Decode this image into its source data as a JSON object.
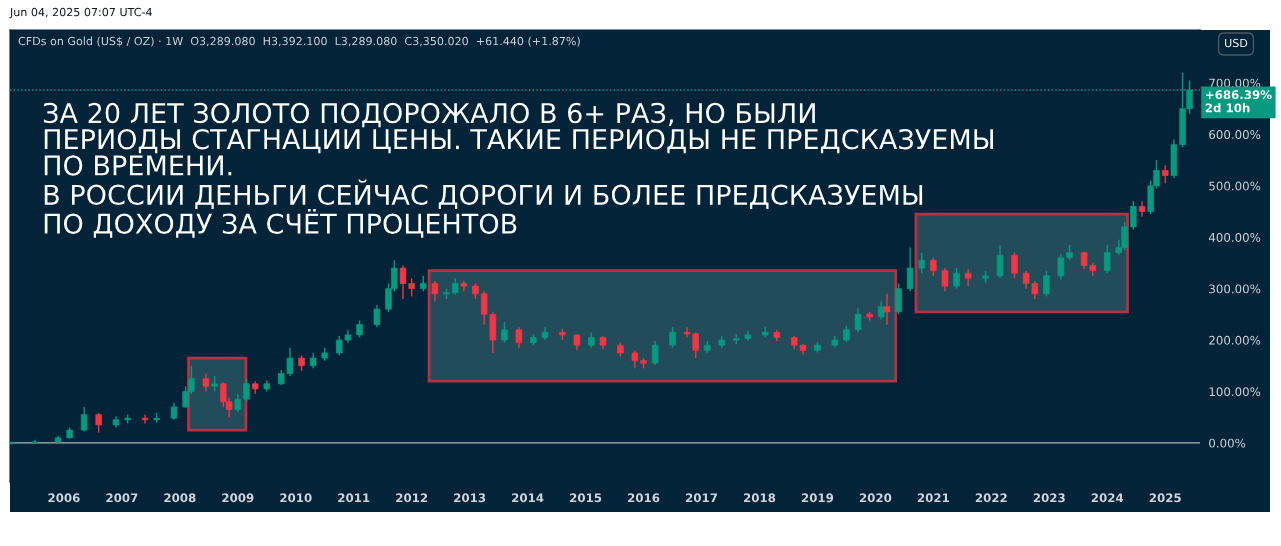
{
  "chart_data": {
    "type": "candlestick",
    "title": "ЗА 20 ЛЕТ ЗОЛОТО ПОДОРОЖАЛО В 6+ РАЗ, НО БЫЛИ\nПЕРИОДЫ СТАГНАЦИИ ЦЕНЫ. ТАКИЕ ПЕРИОДЫ НЕ ПРЕДСКАЗУЕМЫ\nПО ВРЕМЕНИ.\nВ РОССИИ ДЕНЬГИ СЕЙЧАС ДОРОГИ И БОЛЕЕ ПРЕДСКАЗУЕМЫ\nПО ДОХОДУ ЗА СЧЁТ ПРОЦЕНТОВ",
    "subtitle": "CFDs on Gold (US$ / OZ) · 1W  O3,289.080  H3,392.100  L3,289.080  C3,350.020  +61.440 (+1.87%)",
    "annotations": [
      "Jun 04, 2025 07:07 UTC-4",
      "USD"
    ],
    "x": [
      2005.1,
      2005.5,
      2005.9,
      2006.1,
      2006.35,
      2006.6,
      2006.9,
      2007.1,
      2007.4,
      2007.6,
      2007.9,
      2008.1,
      2008.2,
      2008.45,
      2008.6,
      2008.75,
      2008.85,
      2009.0,
      2009.15,
      2009.3,
      2009.5,
      2009.75,
      2009.9,
      2010.1,
      2010.3,
      2010.5,
      2010.75,
      2010.9,
      2011.1,
      2011.4,
      2011.6,
      2011.7,
      2011.85,
      2012.0,
      2012.2,
      2012.4,
      2012.6,
      2012.75,
      2012.9,
      2013.1,
      2013.25,
      2013.4,
      2013.6,
      2013.85,
      2014.1,
      2014.3,
      2014.6,
      2014.85,
      2015.1,
      2015.3,
      2015.6,
      2015.85,
      2016.0,
      2016.2,
      2016.5,
      2016.75,
      2016.9,
      2017.1,
      2017.35,
      2017.6,
      2017.8,
      2018.1,
      2018.3,
      2018.6,
      2018.75,
      2019.0,
      2019.3,
      2019.5,
      2019.7,
      2019.9,
      2020.1,
      2020.2,
      2020.4,
      2020.6,
      2020.8,
      2021.0,
      2021.2,
      2021.4,
      2021.6,
      2021.9,
      2022.15,
      2022.4,
      2022.6,
      2022.75,
      2022.95,
      2023.2,
      2023.35,
      2023.6,
      2023.75,
      2024.0,
      2024.2,
      2024.3,
      2024.45,
      2024.6,
      2024.75,
      2024.85,
      2025.0,
      2025.15,
      2025.3,
      2025.42
    ],
    "ohlc": [
      [
        0,
        3,
        -3,
        0
      ],
      [
        0,
        6,
        -2,
        2
      ],
      [
        2,
        14,
        0,
        10
      ],
      [
        10,
        30,
        8,
        25
      ],
      [
        25,
        70,
        22,
        55
      ],
      [
        55,
        58,
        20,
        35
      ],
      [
        35,
        52,
        30,
        45
      ],
      [
        45,
        55,
        38,
        48
      ],
      [
        48,
        55,
        38,
        45
      ],
      [
        45,
        58,
        40,
        48
      ],
      [
        48,
        78,
        45,
        70
      ],
      [
        70,
        110,
        68,
        100
      ],
      [
        100,
        150,
        95,
        125
      ],
      [
        125,
        135,
        100,
        110
      ],
      [
        110,
        130,
        100,
        115
      ],
      [
        115,
        118,
        70,
        80
      ],
      [
        80,
        88,
        50,
        65
      ],
      [
        65,
        95,
        60,
        85
      ],
      [
        85,
        125,
        80,
        115
      ],
      [
        115,
        120,
        95,
        105
      ],
      [
        105,
        122,
        100,
        115
      ],
      [
        115,
        142,
        112,
        135
      ],
      [
        135,
        185,
        130,
        165
      ],
      [
        165,
        170,
        140,
        150
      ],
      [
        150,
        175,
        145,
        165
      ],
      [
        165,
        185,
        160,
        175
      ],
      [
        175,
        208,
        170,
        200
      ],
      [
        200,
        220,
        195,
        210
      ],
      [
        210,
        238,
        205,
        230
      ],
      [
        230,
        268,
        225,
        260
      ],
      [
        260,
        310,
        255,
        300
      ],
      [
        300,
        355,
        295,
        340
      ],
      [
        340,
        345,
        280,
        310
      ],
      [
        310,
        320,
        285,
        300
      ],
      [
        300,
        325,
        295,
        310
      ],
      [
        310,
        315,
        275,
        290
      ],
      [
        290,
        300,
        280,
        292
      ],
      [
        292,
        320,
        288,
        310
      ],
      [
        310,
        315,
        295,
        305
      ],
      [
        305,
        310,
        280,
        290
      ],
      [
        290,
        295,
        230,
        250
      ],
      [
        250,
        255,
        175,
        200
      ],
      [
        200,
        235,
        195,
        220
      ],
      [
        220,
        225,
        185,
        195
      ],
      [
        195,
        212,
        190,
        205
      ],
      [
        205,
        225,
        200,
        215
      ],
      [
        215,
        222,
        200,
        210
      ],
      [
        210,
        212,
        180,
        190
      ],
      [
        190,
        215,
        185,
        205
      ],
      [
        205,
        208,
        182,
        190
      ],
      [
        190,
        195,
        168,
        175
      ],
      [
        175,
        180,
        145,
        160
      ],
      [
        160,
        165,
        145,
        155
      ],
      [
        155,
        198,
        152,
        190
      ],
      [
        190,
        225,
        185,
        215
      ],
      [
        215,
        225,
        205,
        212
      ],
      [
        212,
        215,
        165,
        180
      ],
      [
        180,
        198,
        175,
        190
      ],
      [
        190,
        208,
        185,
        200
      ],
      [
        200,
        212,
        192,
        203
      ],
      [
        203,
        218,
        198,
        210
      ],
      [
        210,
        225,
        205,
        215
      ],
      [
        215,
        220,
        198,
        205
      ],
      [
        205,
        208,
        182,
        190
      ],
      [
        190,
        192,
        172,
        180
      ],
      [
        180,
        196,
        176,
        190
      ],
      [
        190,
        208,
        186,
        200
      ],
      [
        200,
        228,
        196,
        220
      ],
      [
        220,
        262,
        215,
        250
      ],
      [
        250,
        255,
        238,
        245
      ],
      [
        245,
        275,
        240,
        265
      ],
      [
        265,
        290,
        230,
        255
      ],
      [
        255,
        310,
        250,
        300
      ],
      [
        300,
        380,
        295,
        340
      ],
      [
        340,
        370,
        330,
        355
      ],
      [
        355,
        360,
        325,
        335
      ],
      [
        335,
        340,
        295,
        305
      ],
      [
        305,
        340,
        300,
        330
      ],
      [
        330,
        338,
        305,
        320
      ],
      [
        320,
        335,
        312,
        325
      ],
      [
        325,
        385,
        320,
        365
      ],
      [
        365,
        370,
        320,
        330
      ],
      [
        330,
        335,
        300,
        310
      ],
      [
        310,
        315,
        280,
        290
      ],
      [
        290,
        335,
        285,
        325
      ],
      [
        325,
        368,
        318,
        360
      ],
      [
        360,
        385,
        355,
        370
      ],
      [
        370,
        372,
        338,
        345
      ],
      [
        345,
        350,
        325,
        335
      ],
      [
        335,
        385,
        330,
        370
      ],
      [
        370,
        395,
        365,
        380
      ],
      [
        380,
        430,
        375,
        420
      ],
      [
        420,
        470,
        415,
        460
      ],
      [
        460,
        470,
        440,
        450
      ],
      [
        450,
        510,
        445,
        500
      ],
      [
        500,
        550,
        495,
        530
      ],
      [
        530,
        540,
        505,
        520
      ],
      [
        520,
        590,
        515,
        580
      ],
      [
        580,
        720,
        575,
        650
      ],
      [
        650,
        705,
        640,
        686.39
      ]
    ],
    "colors": [
      "#089981",
      "#089981",
      "#089981",
      "#089981",
      "#089981",
      "#f23645",
      "#089981",
      "#089981",
      "#f23645",
      "#089981",
      "#089981",
      "#089981",
      "#089981",
      "#f23645",
      "#089981",
      "#f23645",
      "#f23645",
      "#089981",
      "#089981",
      "#f23645",
      "#089981",
      "#089981",
      "#089981",
      "#f23645",
      "#089981",
      "#089981",
      "#089981",
      "#089981",
      "#089981",
      "#089981",
      "#089981",
      "#089981",
      "#f23645",
      "#f23645",
      "#089981",
      "#f23645",
      "#089981",
      "#089981",
      "#f23645",
      "#f23645",
      "#f23645",
      "#f23645",
      "#089981",
      "#f23645",
      "#089981",
      "#089981",
      "#f23645",
      "#f23645",
      "#089981",
      "#f23645",
      "#f23645",
      "#f23645",
      "#f23645",
      "#089981",
      "#089981",
      "#f23645",
      "#f23645",
      "#089981",
      "#089981",
      "#089981",
      "#089981",
      "#089981",
      "#f23645",
      "#f23645",
      "#f23645",
      "#089981",
      "#089981",
      "#089981",
      "#089981",
      "#f23645",
      "#089981",
      "#f23645",
      "#089981",
      "#089981",
      "#089981",
      "#f23645",
      "#f23645",
      "#089981",
      "#f23645",
      "#089981",
      "#089981",
      "#f23645",
      "#f23645",
      "#f23645",
      "#089981",
      "#089981",
      "#089981",
      "#f23645",
      "#f23645",
      "#089981",
      "#089981",
      "#089981",
      "#089981",
      "#f23645",
      "#089981",
      "#089981",
      "#f23645",
      "#089981",
      "#089981",
      "#089981"
    ],
    "xlim": [
      2005.07,
      2025.6
    ],
    "xticks": [
      2006,
      2007,
      2008,
      2009,
      2010,
      2011,
      2012,
      2013,
      2014,
      2015,
      2016,
      2017,
      2018,
      2019,
      2020,
      2021,
      2022,
      2023,
      2024,
      2025
    ],
    "ylim": [
      -76,
      803
    ],
    "yticks": [
      {
        "value": 0,
        "label": "0.00%"
      },
      {
        "value": 100,
        "label": "100.00%"
      },
      {
        "value": 200,
        "label": "200.00%"
      },
      {
        "value": 300,
        "label": "300.00%"
      },
      {
        "value": 400,
        "label": "400.00%"
      },
      {
        "value": 500,
        "label": "500.00%"
      },
      {
        "value": 600,
        "label": "600.00%"
      },
      {
        "value": 700,
        "label": "700.00%"
      }
    ],
    "ref_lines": [
      {
        "axis": "y",
        "value": 0,
        "color": "#b2b5be",
        "line_style": "solid"
      },
      {
        "axis": "y",
        "value": 686.39,
        "label": "+686.39%\n2d 10h",
        "color": "#089981",
        "line_style": "dotted"
      }
    ],
    "bands": [
      {
        "axis": "x",
        "from": 2008.15,
        "to": 2009.14,
        "color": "#f23645"
      },
      {
        "axis": "x",
        "from": 2012.3,
        "to": 2020.35,
        "color": "#f23645"
      },
      {
        "axis": "x",
        "from": 2020.7,
        "to": 2024.35,
        "color": "#f23645"
      }
    ],
    "grid": false,
    "legend": false
  }
}
